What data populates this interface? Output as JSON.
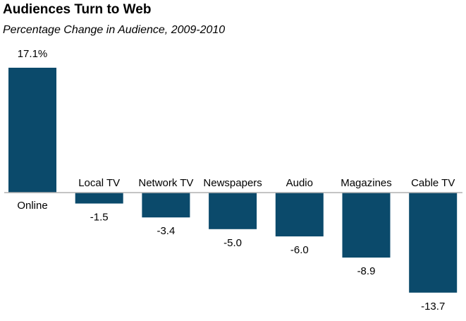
{
  "chart_data": {
    "type": "bar",
    "title": "Audiences Turn to Web",
    "subtitle": "Percentage Change in Audience, 2009-2010",
    "categories": [
      "Online",
      "Local TV",
      "Network TV",
      "Newspapers",
      "Audio",
      "Magazines",
      "Cable TV"
    ],
    "values": [
      17.1,
      -1.5,
      -3.4,
      -5.0,
      -6.0,
      -8.9,
      -13.7
    ],
    "value_labels": [
      "17.1%",
      "-1.5",
      "-3.4",
      "-5.0",
      "-6.0",
      "-8.9",
      "-13.7"
    ],
    "xlabel": "",
    "ylabel": "",
    "ylim": [
      -13.7,
      17.1
    ],
    "grid": false,
    "legend": "none",
    "bar_color": "#0b4a6b",
    "axis_color": "#b0b0b0"
  }
}
